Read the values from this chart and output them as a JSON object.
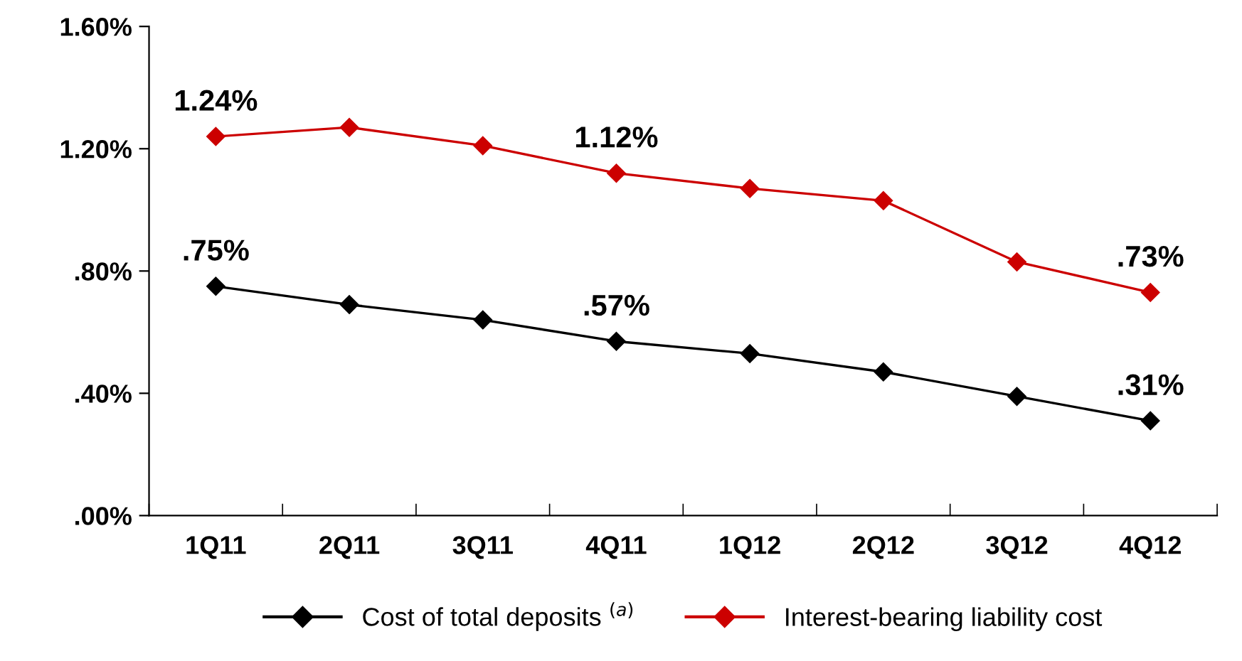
{
  "chart_data": {
    "type": "line",
    "categories": [
      "1Q11",
      "2Q11",
      "3Q11",
      "4Q11",
      "1Q12",
      "2Q12",
      "3Q12",
      "4Q12"
    ],
    "series": [
      {
        "name": "Cost of total deposits $^{(a)}$",
        "color": "#000000",
        "values": [
          0.75,
          0.69,
          0.64,
          0.57,
          0.53,
          0.47,
          0.39,
          0.31
        ],
        "value_labels": [
          ".75%",
          null,
          null,
          ".57%",
          null,
          null,
          null,
          ".31%"
        ]
      },
      {
        "name": "Interest-bearing liability cost",
        "color": "#cc0000",
        "values": [
          1.24,
          1.27,
          1.21,
          1.12,
          1.07,
          1.03,
          0.83,
          0.73
        ],
        "value_labels": [
          "1.24%",
          null,
          null,
          "1.12%",
          null,
          null,
          null,
          ".73%"
        ]
      }
    ],
    "ylim": [
      0,
      1.6
    ],
    "yticks": [
      {
        "value": 0,
        "label": ".00%"
      },
      {
        "value": 0.4,
        "label": ".40%"
      },
      {
        "value": 0.8,
        "label": ".80%"
      },
      {
        "value": 1.2,
        "label": "1.20%"
      },
      {
        "value": 1.6,
        "label": "1.60%"
      }
    ],
    "marker": "diamond",
    "line_style": "solid",
    "grid": false,
    "legend": "bottom"
  }
}
